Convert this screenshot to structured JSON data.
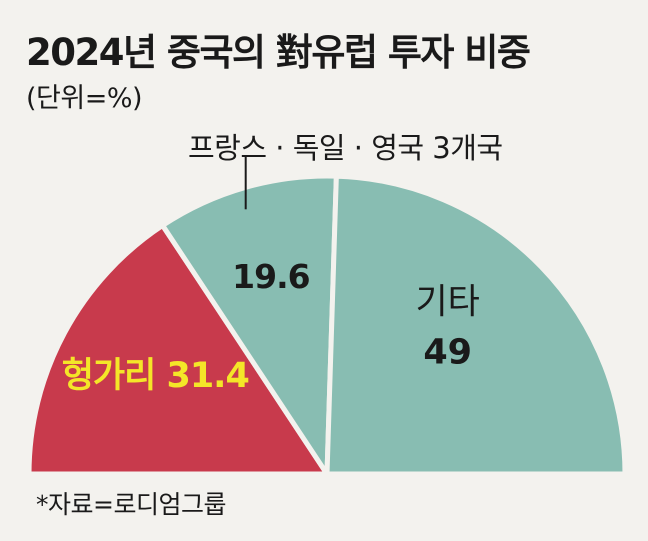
{
  "title": "2024년 중국의 對유럽 투자 비중",
  "unit": "(단위=%)",
  "source": "*자료=로디엄그룹",
  "chart_data": {
    "type": "pie",
    "shape": "half-donut",
    "slices": [
      {
        "label": "헝가리",
        "value": 31.4,
        "display": "헝가리 31.4",
        "color": "#c83a4c",
        "label_color": "#f4e628"
      },
      {
        "label": "",
        "value": 19.6,
        "display": "19.6",
        "color": "#88bdb2",
        "label_color": "#1a1a1a",
        "callout": "프랑스 · 독일 · 영국 3개국"
      },
      {
        "label": "기타",
        "value": 49,
        "display": "49",
        "color": "#88bdb2",
        "label_color": "#1a1a1a"
      }
    ]
  }
}
